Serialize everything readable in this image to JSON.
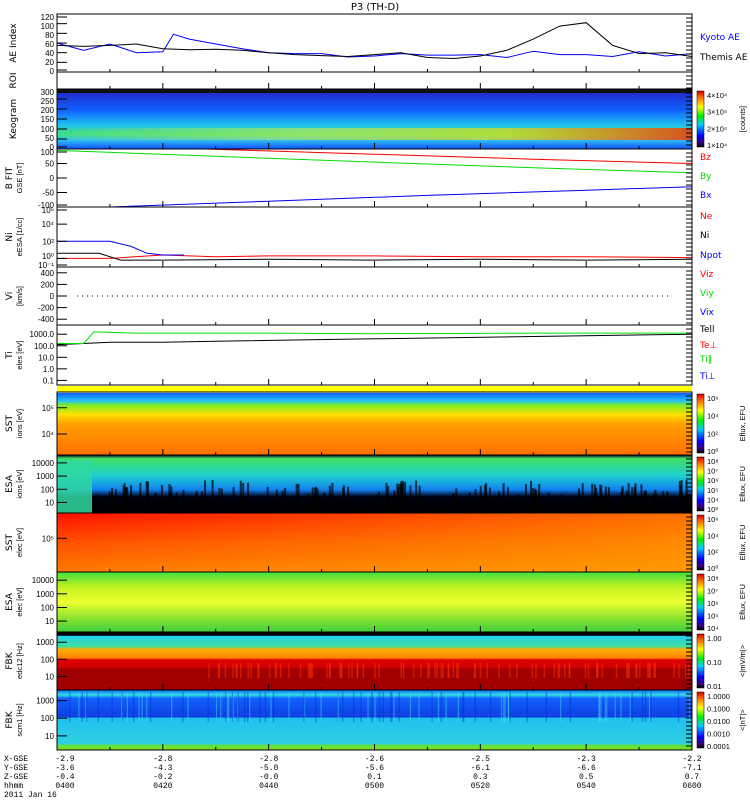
{
  "title": "P3 (TH-D)",
  "date_label": "2011 Jan 16",
  "chart_data": {
    "type": "line",
    "time_range": [
      "0400",
      "0600"
    ],
    "time_ticks": [
      "0400",
      "0420",
      "0440",
      "0500",
      "0520",
      "0540",
      "0600"
    ],
    "orbit_rows": [
      {
        "label": "X-GSE",
        "values": [
          "-2.9",
          "-2.8",
          "-2.8",
          "-2.6",
          "-2.5",
          "-2.3",
          "-2.2"
        ]
      },
      {
        "label": "Y-GSE",
        "values": [
          "-3.6",
          "-4.3",
          "-5.0",
          "-5.6",
          "-6.1",
          "-6.6",
          "-7.1"
        ]
      },
      {
        "label": "Z-GSE",
        "values": [
          "-0.4",
          "-0.2",
          "-0.0",
          "0.1",
          "0.3",
          "0.5",
          "0.7"
        ]
      },
      {
        "label": "hhmm",
        "values": [
          "0400",
          "0420",
          "0440",
          "0500",
          "0520",
          "0540",
          "0600"
        ]
      }
    ],
    "panels": [
      {
        "id": "ae",
        "ylabel": "AE Index",
        "scale": "lin",
        "ylim": [
          0,
          120
        ],
        "ticks": [
          "0",
          "20",
          "40",
          "60",
          "80",
          "100",
          "120"
        ],
        "series": [
          {
            "name": "Kyoto AE",
            "color": "#0000ff",
            "t": [
              0,
              5,
              10,
              15,
              20,
              22,
              25,
              30,
              35,
              40,
              45,
              50,
              55,
              60,
              65,
              70,
              75,
              80,
              85,
              90,
              95,
              100,
              105,
              110,
              115,
              120
            ],
            "v": [
              60,
              45,
              58,
              40,
              42,
              78,
              68,
              58,
              48,
              40,
              38,
              38,
              31,
              33,
              38,
              35,
              35,
              36,
              30,
              43,
              36,
              36,
              32,
              42,
              33,
              38
            ]
          },
          {
            "name": "Themis AE",
            "color": "#000000",
            "t": [
              0,
              5,
              10,
              15,
              20,
              25,
              30,
              35,
              40,
              45,
              50,
              55,
              60,
              65,
              70,
              75,
              80,
              85,
              90,
              95,
              100,
              105,
              110,
              115,
              120
            ],
            "v": [
              55,
              53,
              55,
              58,
              48,
              46,
              47,
              45,
              40,
              36,
              34,
              32,
              36,
              40,
              30,
              28,
              33,
              45,
              68,
              95,
              102,
              55,
              38,
              40,
              32
            ]
          }
        ]
      },
      {
        "id": "roi",
        "ylabel": "ROI",
        "ticks": []
      },
      {
        "id": "keogram",
        "ylabel": "Keogram",
        "scale": "lin",
        "ylim": [
          0,
          300
        ],
        "ticks": [
          "0",
          "50",
          "100",
          "150",
          "200",
          "250",
          "300"
        ],
        "colorbar": {
          "label": "[counts]",
          "ticks": [
            "1×10⁴",
            "2×10⁴",
            "3×10⁴",
            "4×10⁴"
          ]
        }
      },
      {
        "id": "bfit",
        "ylabel": "B FIT",
        "units": "GSE [nT]",
        "scale": "lin",
        "ylim": [
          -100,
          100
        ],
        "ticks": [
          "-100",
          "-50",
          "0",
          "50",
          "100"
        ],
        "series": [
          {
            "name": "Bz",
            "color": "#ff0000",
            "t": [
              28,
              60,
              90,
              120
            ],
            "v": [
              100,
              82,
              65,
              50
            ]
          },
          {
            "name": "By",
            "color": "#00dd00",
            "t": [
              0,
              30,
              60,
              90,
              120
            ],
            "v": [
              95,
              75,
              55,
              35,
              18
            ]
          },
          {
            "name": "Bx",
            "color": "#0000ff",
            "t": [
              10,
              40,
              70,
              100,
              120
            ],
            "v": [
              -100,
              -80,
              -60,
              -42,
              -30
            ]
          }
        ]
      },
      {
        "id": "ni",
        "ylabel": "Ni",
        "units": "eESA [1/cc]",
        "scale": "log",
        "ylim": [
          -1,
          6
        ],
        "ticks": [
          "10⁻¹",
          "10⁰",
          "10²",
          "10⁴",
          "10⁶"
        ],
        "tickvals": [
          -1,
          0,
          2,
          4,
          6
        ],
        "series": [
          {
            "name": "Ne",
            "color": "#ff0000",
            "t": [
              0,
              10,
              20,
              30,
              40,
              60,
              80,
              100,
              120
            ],
            "v": [
              0,
              0,
              0.4,
              0.2,
              0.3,
              0.3,
              0.2,
              0.2,
              0.1
            ]
          },
          {
            "name": "Ni",
            "color": "#000000",
            "t": [
              0,
              8,
              12,
              20,
              40,
              60,
              80,
              100,
              120
            ],
            "v": [
              0.6,
              0.6,
              -0.2,
              -0.2,
              -0.1,
              -0.2,
              -0.1,
              -0.2,
              -0.1
            ]
          },
          {
            "name": "Npot",
            "color": "#0000ff",
            "t": [
              0,
              10,
              14,
              17,
              20,
              24
            ],
            "v": [
              2,
              2,
              1.4,
              0.6,
              0.4,
              0.4
            ]
          }
        ]
      },
      {
        "id": "vi",
        "ylabel": "Vi",
        "units": "[km/s]",
        "scale": "lin",
        "ylim": [
          -500,
          500
        ],
        "ticks": [
          "-400",
          "-200",
          "0",
          "200",
          "400"
        ],
        "series": [
          {
            "name": "Viz",
            "color": "#ff0000"
          },
          {
            "name": "Viy",
            "color": "#00dd00"
          },
          {
            "name": "Vix",
            "color": "#0000ff"
          }
        ]
      },
      {
        "id": "ti",
        "ylabel": "Ti",
        "units": "eles [eV]",
        "scale": "log",
        "ylim": [
          -1.4,
          3.8
        ],
        "ticks": [
          "0.1",
          "1.0",
          "10.0",
          "100.0",
          "1000.0"
        ],
        "tickvals": [
          -1,
          0,
          1,
          2,
          3
        ],
        "series": [
          {
            "name": "Tell",
            "color": "#000000",
            "t": [
              0,
              5,
              10,
              20,
              30,
              60,
              90,
              120
            ],
            "v": [
              2.1,
              2.2,
              2.3,
              2.3,
              2.4,
              2.6,
              2.8,
              3.0
            ]
          },
          {
            "name": "Te⊥",
            "color": "#ff0000"
          },
          {
            "name": "Ti‖",
            "color": "#00dd00",
            "t": [
              0,
              5,
              7,
              15,
              40,
              60,
              90,
              120
            ],
            "v": [
              2.2,
              2.2,
              3.2,
              3.1,
              3.1,
              3.05,
              3.1,
              3.1
            ]
          },
          {
            "name": "Ti⊥",
            "color": "#0000ff"
          }
        ]
      },
      {
        "id": "sst_i",
        "ylabel": "SST",
        "units": "ions [eV]",
        "ticks": [
          "10⁴",
          "10⁵"
        ],
        "colorbar": {
          "label": "Eflux, EFU",
          "ticks": [
            "10⁰",
            "10²",
            "10⁴",
            "10⁶"
          ]
        }
      },
      {
        "id": "esa_i",
        "ylabel": "ESA",
        "units": "ions [eV]",
        "ticks": [
          "10",
          "100",
          "1000",
          "10000"
        ],
        "colorbar": {
          "label": "Eflux, EFU",
          "ticks": [
            "10³",
            "10⁴",
            "10⁵",
            "10⁶",
            "10⁷",
            "10⁸"
          ]
        }
      },
      {
        "id": "sst_e",
        "ylabel": "SST",
        "units": "elec [eV]",
        "ticks": [
          "10⁵"
        ],
        "colorbar": {
          "label": "Eflux, EFU",
          "ticks": [
            "10⁰",
            "10²",
            "10⁴",
            "10⁶"
          ]
        }
      },
      {
        "id": "esa_e",
        "ylabel": "ESA",
        "units": "elec [eV]",
        "ticks": [
          "10",
          "100",
          "1000",
          "10000"
        ],
        "colorbar": {
          "label": "Eflux, EFU",
          "ticks": [
            "10⁴",
            "10⁵",
            "10⁶",
            "10⁷",
            "10⁸"
          ]
        }
      },
      {
        "id": "fbk1",
        "ylabel": "FBK",
        "units": "edc12 [Hz]",
        "ticks": [
          "10",
          "100",
          "1000"
        ],
        "colorbar": {
          "label": "<|mV/m|>",
          "ticks": [
            "0.01",
            "0.10",
            "1.00"
          ]
        }
      },
      {
        "id": "fbk2",
        "ylabel": "FBK",
        "units": "scm1 [Hz]",
        "ticks": [
          "10",
          "100",
          "1000"
        ],
        "colorbar": {
          "label": "<|nT|>",
          "ticks": [
            "0.0001",
            "0.0010",
            "0.0100",
            "0.1000",
            "1.0000"
          ]
        }
      }
    ]
  }
}
